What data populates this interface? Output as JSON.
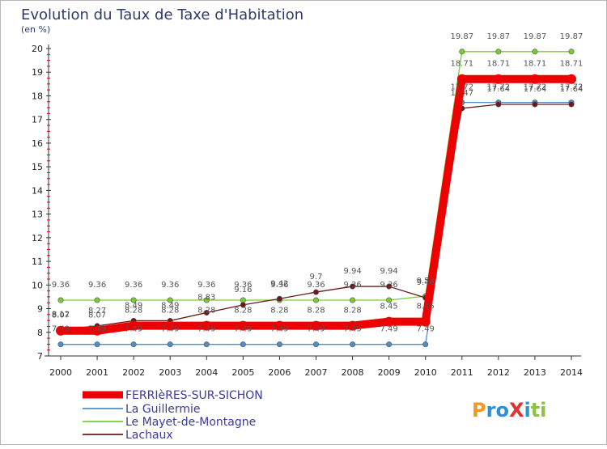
{
  "header": {
    "title": "Evolution du Taux de Taxe d'Habitation",
    "unit_label": "(en %)"
  },
  "logo": {
    "text": "ProXiti"
  },
  "chart_data": {
    "type": "line",
    "title": "Evolution du Taux de Taxe d'Habitation",
    "ylabel": "(en %)",
    "xlabel": "",
    "ylim": [
      7,
      20
    ],
    "yticks": [
      "7",
      "8",
      "9",
      "10",
      "11",
      "12",
      "13",
      "14",
      "15",
      "16",
      "17",
      "18",
      "19",
      "20"
    ],
    "x": [
      "2000",
      "2001",
      "2002",
      "2003",
      "2004",
      "2005",
      "2006",
      "2007",
      "2008",
      "2009",
      "2010",
      "2011",
      "2012",
      "2013",
      "2014"
    ],
    "grid": false,
    "legend_position": "bottom-left",
    "series": [
      {
        "name": "FERRIèRES-SUR-SICHON",
        "color": "#ee0000",
        "values": [
          8.07,
          8.07,
          8.28,
          8.28,
          8.28,
          8.28,
          8.28,
          8.28,
          8.28,
          8.45,
          8.45,
          18.71,
          18.71,
          18.71,
          18.71
        ],
        "labels": [
          "8.07",
          "8.07",
          "8.28",
          "8.28",
          "8.28",
          "8.28",
          "8.28",
          "8.28",
          "8.28",
          "8.45",
          "8.45",
          "18.71",
          "18.71",
          "18.71",
          "18.71"
        ]
      },
      {
        "name": "La Guillermie",
        "color": "#4f8ec9",
        "values": [
          7.49,
          7.49,
          7.49,
          7.49,
          7.49,
          7.49,
          7.49,
          7.49,
          7.49,
          7.49,
          7.49,
          17.72,
          17.72,
          17.72,
          17.72
        ],
        "labels": [
          "7.49",
          "7.49",
          "7.49",
          "7.49",
          "7.49",
          "7.49",
          "7.49",
          "7.49",
          "7.49",
          "7.49",
          "7.49",
          "17.72",
          "17.72",
          "17.72",
          "17.72"
        ]
      },
      {
        "name": "Le Mayet-de-Montagne",
        "color": "#77cc33",
        "values": [
          9.36,
          9.36,
          9.36,
          9.36,
          9.36,
          9.36,
          9.36,
          9.36,
          9.36,
          9.36,
          9.53,
          19.87,
          19.87,
          19.87,
          19.87
        ],
        "labels": [
          "9.36",
          "9.36",
          "9.36",
          "9.36",
          "9.36",
          "9.36",
          "9.36",
          "9.36",
          "9.36",
          "9.36",
          "9.53",
          "19.87",
          "19.87",
          "19.87",
          "19.87"
        ]
      },
      {
        "name": "Lachaux",
        "color": "#6b1a1a",
        "values": [
          8.12,
          8.27,
          8.49,
          8.49,
          8.83,
          9.16,
          9.42,
          9.7,
          9.94,
          9.94,
          9.46,
          17.47,
          17.64,
          17.64,
          17.64
        ],
        "labels": [
          "8.12",
          "8.27",
          "8.49",
          "8.49",
          "8.83",
          "9.16",
          "9.42",
          "9.7",
          "9.94",
          "9.94",
          "9.46",
          "17.47",
          "17.64",
          "17.64",
          "17.64"
        ]
      }
    ]
  }
}
